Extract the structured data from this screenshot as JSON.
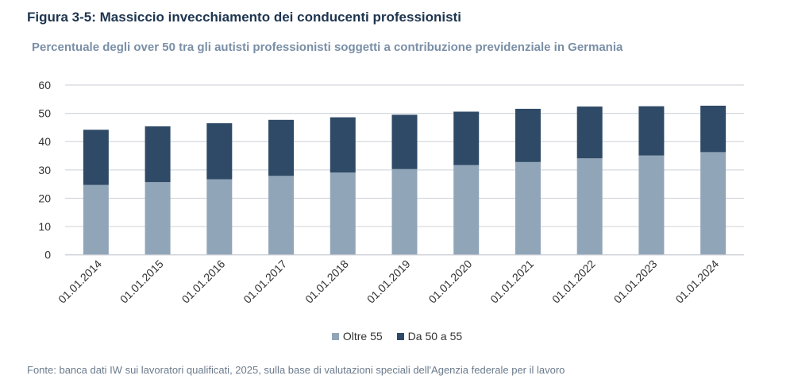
{
  "title": "Figura 3-5: Massiccio invecchiamento dei conducenti professionisti",
  "subtitle": "Percentuale degli over 50 tra gli autisti professionisti soggetti a contribuzione previdenziale in Germania",
  "footer": "Fonte: banca dati IW sui lavoratori qualificati, 2025, sulla base di valutazioni speciali dell'Agenzia federale per il lavoro",
  "chart_data": {
    "type": "bar",
    "stacked": true,
    "title": "Figura 3-5: Massiccio invecchiamento dei conducenti professionisti",
    "subtitle": "Percentuale degli over 50 tra gli autisti professionisti soggetti a contribuzione previdenziale in Germania",
    "xlabel": "",
    "ylabel": "",
    "ylim": [
      0,
      60
    ],
    "yticks": [
      "0",
      "10",
      "20",
      "30",
      "40",
      "50",
      "60"
    ],
    "grid": true,
    "legend_position": "bottom",
    "categories": [
      "01.01.2014",
      "01.01.2015",
      "01.01.2016",
      "01.01.2017",
      "01.01.2018",
      "01.01.2019",
      "01.01.2020",
      "01.01.2021",
      "01.01.2022",
      "01.01.2023",
      "01.01.2024"
    ],
    "series": [
      {
        "name": "Oltre 55",
        "color": "#91a5b8",
        "values": [
          24.7,
          25.7,
          26.7,
          27.9,
          29.1,
          30.3,
          31.7,
          32.8,
          34.1,
          35.1,
          36.3
        ]
      },
      {
        "name": "Da 50 a 55",
        "color": "#2e4a66",
        "values": [
          19.5,
          19.7,
          19.8,
          19.8,
          19.5,
          19.2,
          18.9,
          18.8,
          18.3,
          17.4,
          16.4
        ]
      }
    ]
  }
}
